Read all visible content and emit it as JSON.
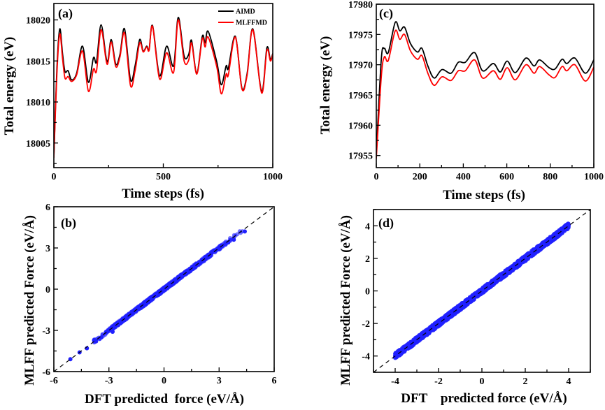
{
  "chart_data": [
    {
      "panel": "(a)",
      "type": "line",
      "xlabel": "Time steps (fs)",
      "ylabel": "Total energy (eV)",
      "xlim": [
        0,
        1000
      ],
      "ylim": [
        18002,
        18022
      ],
      "xticks": [
        0,
        500,
        1000
      ],
      "yticks": [
        18005,
        18010,
        18015,
        18020
      ],
      "legend": {
        "placement": "top-right",
        "entries": [
          "AIMD",
          "MLFFMD"
        ]
      },
      "series": [
        {
          "name": "AIMD",
          "color": "#000000",
          "x": [
            0,
            14,
            27,
            40,
            51,
            65,
            81,
            104,
            131,
            158,
            181,
            195,
            216,
            243,
            262,
            283,
            302,
            323,
            350,
            371,
            392,
            408,
            424,
            435,
            451,
            483,
            515,
            547,
            568,
            595,
            616,
            629,
            653,
            678,
            691,
            705,
            744,
            765,
            787,
            797,
            829,
            859,
            883,
            909,
            949,
            973,
            989,
            1000
          ],
          "y": [
            18003.4,
            18014.1,
            18018.9,
            18015.8,
            18013.7,
            18013.8,
            18012.7,
            18013.5,
            18016.8,
            18012.4,
            18015.4,
            18014.9,
            18019.4,
            18014.9,
            18017.6,
            18014.6,
            18015.8,
            18018.9,
            18012.7,
            18014.4,
            18017.6,
            18016.2,
            18016.8,
            18016.4,
            18019.3,
            18013.2,
            18016.8,
            18014.4,
            18020.3,
            18015.6,
            18015.8,
            18017.5,
            18013.5,
            18018.0,
            18017.2,
            18018.6,
            18014.9,
            18012.1,
            18014.4,
            18014.1,
            18018.0,
            18011.7,
            18013.5,
            18018.9,
            18011.3,
            18016.6,
            18015.2,
            18015.9
          ]
        },
        {
          "name": "MLFFMD",
          "color": "#ff0000",
          "x": [
            0,
            14,
            27,
            40,
            51,
            65,
            81,
            104,
            131,
            158,
            181,
            195,
            216,
            243,
            262,
            283,
            302,
            323,
            350,
            371,
            392,
            408,
            424,
            435,
            451,
            483,
            515,
            547,
            568,
            595,
            616,
            629,
            653,
            678,
            691,
            705,
            744,
            765,
            787,
            797,
            829,
            859,
            883,
            909,
            949,
            973,
            989,
            1000
          ],
          "y": [
            18003.2,
            18013.5,
            18018.3,
            18015.2,
            18012.9,
            18013.1,
            18012.5,
            18013.3,
            18016.2,
            18011.3,
            18014.0,
            18013.8,
            18018.8,
            18014.6,
            18017.3,
            18014.3,
            18015.5,
            18018.4,
            18012.0,
            18013.8,
            18017.2,
            18016.1,
            18016.7,
            18016.3,
            18019.2,
            18012.8,
            18016.0,
            18013.6,
            18020.0,
            18015.0,
            18015.1,
            18017.2,
            18013.4,
            18017.7,
            18016.7,
            18017.9,
            18014.3,
            18011.0,
            18013.4,
            18013.3,
            18017.9,
            18011.6,
            18013.3,
            18018.8,
            18011.1,
            18016.3,
            18015.0,
            18015.8
          ]
        }
      ]
    },
    {
      "panel": "(b)",
      "type": "scatter",
      "xlabel": "DFT predicted  force (eV/Å)",
      "ylabel": "MLFF predicted Force (eV/Å)",
      "xlim": [
        -6,
        6
      ],
      "ylim": [
        -6,
        6
      ],
      "xticks": [
        -6,
        -3,
        0,
        3,
        6
      ],
      "yticks": [
        -6,
        -3,
        0,
        3,
        6
      ],
      "reference_line": "y = x (dashed)",
      "color": "#2020ff",
      "data_extent": [
        -5.1,
        4.4
      ],
      "points": [
        [
          -5.1,
          -5.1
        ],
        [
          -4.6,
          -4.6
        ],
        [
          -4.2,
          -4.3
        ],
        [
          -3.7,
          -3.8
        ],
        [
          -3.4,
          -3.5
        ],
        [
          -3.0,
          -3.0
        ],
        [
          -2.8,
          -3.1
        ],
        [
          -2.7,
          -2.6
        ],
        [
          -2.3,
          -2.4
        ],
        [
          -2.0,
          -1.9
        ],
        [
          -1.5,
          -1.5
        ],
        [
          -1.0,
          -0.9
        ],
        [
          -0.5,
          -0.4
        ],
        [
          0.0,
          0.1
        ],
        [
          0.5,
          0.4
        ],
        [
          1.0,
          1.0
        ],
        [
          1.5,
          1.5
        ],
        [
          2.0,
          2.0
        ],
        [
          2.5,
          2.4
        ],
        [
          3.0,
          2.9
        ],
        [
          3.5,
          3.4
        ],
        [
          3.8,
          3.6
        ],
        [
          4.4,
          4.2
        ]
      ]
    },
    {
      "panel": "(c)",
      "type": "line",
      "xlabel": "Time steps (fs)",
      "ylabel": "Total energy (eV)",
      "xlim": [
        0,
        1000
      ],
      "ylim": [
        17953,
        17980
      ],
      "xticks": [
        0,
        200,
        400,
        600,
        800,
        1000
      ],
      "yticks": [
        17955,
        17960,
        17965,
        17970,
        17975,
        17980
      ],
      "series": [
        {
          "name": "AIMD",
          "color": "#000000",
          "x": [
            0,
            23,
            37,
            55,
            87,
            108,
            130,
            157,
            189,
            210,
            237,
            266,
            302,
            344,
            377,
            409,
            452,
            489,
            538,
            570,
            602,
            639,
            688,
            725,
            751,
            795,
            822,
            854,
            876,
            913,
            961,
            1000
          ],
          "y": [
            17955.2,
            17970.9,
            17972.7,
            17972.0,
            17977.0,
            17975.6,
            17976.2,
            17973.5,
            17972.1,
            17972.7,
            17969.8,
            17967.8,
            17969.2,
            17968.6,
            17970.4,
            17970.4,
            17972.0,
            17969.0,
            17970.2,
            17968.8,
            17970.6,
            17968.7,
            17971.1,
            17969.8,
            17970.8,
            17969.5,
            17969.3,
            17970.9,
            17970.2,
            17971.1,
            17968.6,
            17970.8
          ]
        },
        {
          "name": "MLFFMD",
          "color": "#ff0000",
          "x": [
            0,
            23,
            37,
            55,
            87,
            108,
            130,
            157,
            189,
            210,
            237,
            266,
            302,
            344,
            377,
            409,
            452,
            489,
            538,
            570,
            602,
            639,
            688,
            725,
            751,
            795,
            822,
            854,
            876,
            913,
            961,
            1000
          ],
          "y": [
            17954.5,
            17968.0,
            17971.3,
            17970.7,
            17975.6,
            17974.2,
            17975.0,
            17972.3,
            17970.9,
            17971.5,
            17968.6,
            17966.6,
            17968.0,
            17967.4,
            17969.0,
            17969.0,
            17970.8,
            17967.8,
            17969.0,
            17967.6,
            17969.5,
            17967.5,
            17970.0,
            17968.6,
            17969.7,
            17968.3,
            17967.9,
            17969.7,
            17969.0,
            17970.0,
            17967.3,
            17969.6
          ]
        }
      ]
    },
    {
      "panel": "(d)",
      "type": "scatter",
      "xlabel": "DFT    predicted force (eV/Å)",
      "ylabel": "MLFF predicted Force (eV/Å)",
      "xlim": [
        -5,
        5
      ],
      "ylim": [
        -5,
        5
      ],
      "xticks": [
        -4,
        -2,
        0,
        2,
        4
      ],
      "yticks": [
        -4,
        -2,
        0,
        2,
        4
      ],
      "reference_line": "y = x (dashed)",
      "color": "#2020ff",
      "data_extent": [
        -4.0,
        4.0
      ],
      "points": [
        [
          -4.0,
          -4.0
        ],
        [
          -3.5,
          -3.5
        ],
        [
          -3.0,
          -3.0
        ],
        [
          -2.5,
          -2.5
        ],
        [
          -2.0,
          -2.0
        ],
        [
          -1.5,
          -1.5
        ],
        [
          -1.0,
          -1.0
        ],
        [
          -0.5,
          -0.5
        ],
        [
          0.0,
          0.0
        ],
        [
          0.5,
          0.5
        ],
        [
          1.0,
          1.0
        ],
        [
          1.5,
          1.5
        ],
        [
          2.0,
          2.0
        ],
        [
          2.5,
          2.5
        ],
        [
          3.0,
          3.0
        ],
        [
          3.5,
          3.5
        ],
        [
          4.0,
          4.0
        ]
      ]
    }
  ]
}
